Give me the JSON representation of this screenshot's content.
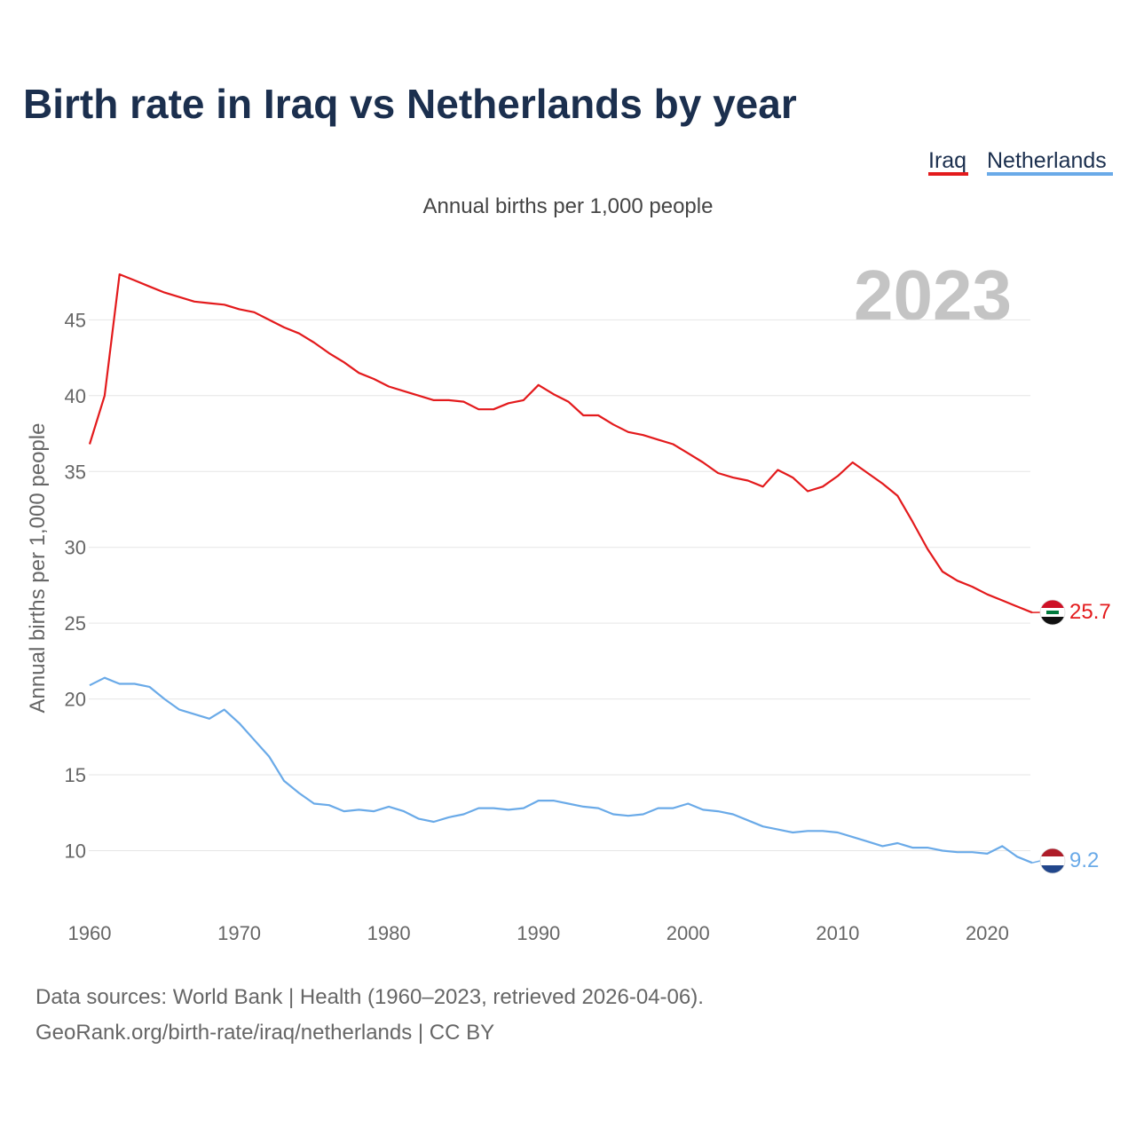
{
  "title": "Birth rate in Iraq vs Netherlands by year",
  "subtitle": "Annual births per 1,000 people",
  "footer": {
    "line1": "Data sources: World Bank | Health (1960–2023, retrieved 2026-04-06).",
    "line2": "GeoRank.org/birth-rate/iraq/netherlands | CC BY"
  },
  "chart_data": {
    "type": "line",
    "title": "Birth rate in Iraq vs Netherlands by year",
    "ylabel": "Annual births per 1,000 people",
    "xlabel": "",
    "year_label": "2023",
    "xlim": [
      1960,
      2023
    ],
    "ylim": [
      5.5,
      49
    ],
    "x_ticks": [
      1960,
      1970,
      1980,
      1990,
      2000,
      2010,
      2020
    ],
    "y_ticks": [
      10,
      15,
      20,
      25,
      30,
      35,
      40,
      45
    ],
    "grid": true,
    "legend_position": "top-right",
    "x": [
      1960,
      1961,
      1962,
      1963,
      1964,
      1965,
      1966,
      1967,
      1968,
      1969,
      1970,
      1971,
      1972,
      1973,
      1974,
      1975,
      1976,
      1977,
      1978,
      1979,
      1980,
      1981,
      1982,
      1983,
      1984,
      1985,
      1986,
      1987,
      1988,
      1989,
      1990,
      1991,
      1992,
      1993,
      1994,
      1995,
      1996,
      1997,
      1998,
      1999,
      2000,
      2001,
      2002,
      2003,
      2004,
      2005,
      2006,
      2007,
      2008,
      2009,
      2010,
      2011,
      2012,
      2013,
      2014,
      2015,
      2016,
      2017,
      2018,
      2019,
      2020,
      2021,
      2022,
      2023
    ],
    "series": [
      {
        "name": "Iraq",
        "color": "#e31a1c",
        "end_label": "25.7",
        "values": [
          36.8,
          40.0,
          48.0,
          47.6,
          47.2,
          46.8,
          46.5,
          46.2,
          46.1,
          46.0,
          45.7,
          45.5,
          45.0,
          44.5,
          44.1,
          43.5,
          42.8,
          42.2,
          41.5,
          41.1,
          40.6,
          40.3,
          40.0,
          39.7,
          39.7,
          39.6,
          39.1,
          39.1,
          39.5,
          39.7,
          40.7,
          40.1,
          39.6,
          38.7,
          38.7,
          38.1,
          37.6,
          37.4,
          37.1,
          36.8,
          36.2,
          35.6,
          34.9,
          34.6,
          34.4,
          34.0,
          35.1,
          34.6,
          33.7,
          34.0,
          34.7,
          35.6,
          34.9,
          34.2,
          33.4,
          31.7,
          29.9,
          28.4,
          27.8,
          27.4,
          26.9,
          26.5,
          26.1,
          25.7
        ]
      },
      {
        "name": "Netherlands",
        "color": "#6aaae8",
        "end_label": "9.2",
        "values": [
          20.9,
          21.4,
          21.0,
          21.0,
          20.8,
          20.0,
          19.3,
          19.0,
          18.7,
          19.3,
          18.4,
          17.3,
          16.2,
          14.6,
          13.8,
          13.1,
          13.0,
          12.6,
          12.7,
          12.6,
          12.9,
          12.6,
          12.1,
          11.9,
          12.2,
          12.4,
          12.8,
          12.8,
          12.7,
          12.8,
          13.3,
          13.3,
          13.1,
          12.9,
          12.8,
          12.4,
          12.3,
          12.4,
          12.8,
          12.8,
          13.1,
          12.7,
          12.6,
          12.4,
          12.0,
          11.6,
          11.4,
          11.2,
          11.3,
          11.3,
          11.2,
          10.9,
          10.6,
          10.3,
          10.5,
          10.2,
          10.2,
          10.0,
          9.9,
          9.9,
          9.8,
          10.3,
          9.6,
          9.2
        ]
      }
    ]
  }
}
